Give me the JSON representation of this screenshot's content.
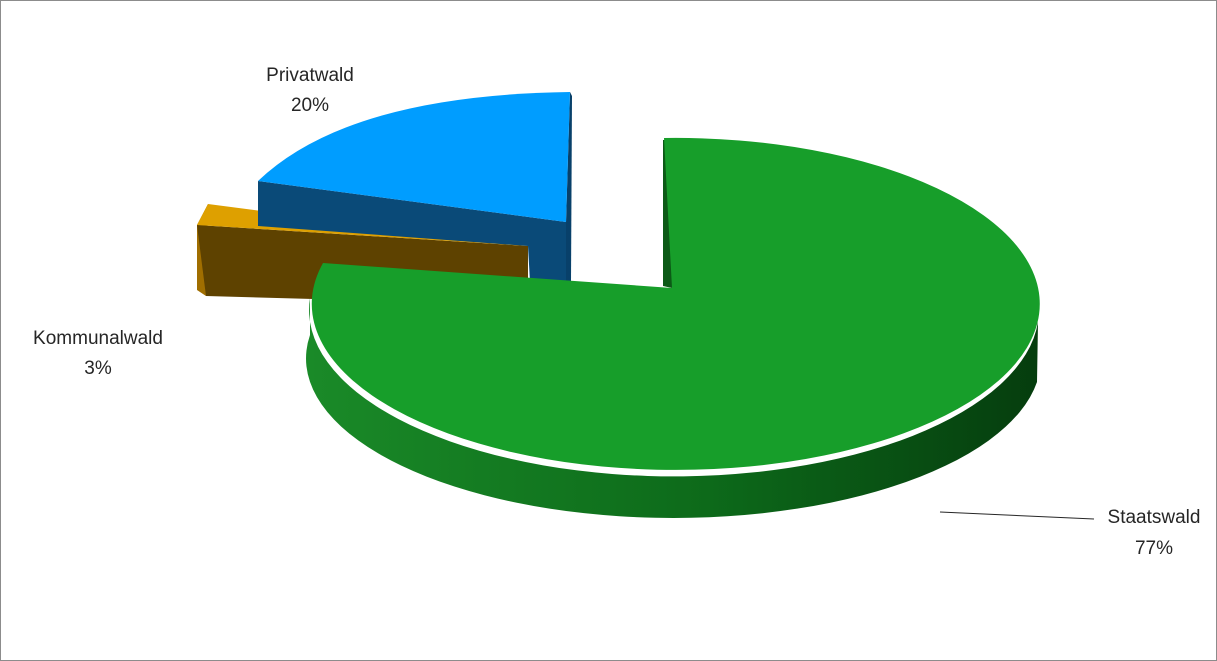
{
  "chart_data": {
    "type": "pie",
    "title": "",
    "legend": "none",
    "style": "3d-exploded",
    "slices": [
      {
        "label": "Staatswald",
        "value": 77,
        "pct_label": "77%",
        "color": "#179E2A"
      },
      {
        "label": "Privatwald",
        "value": 20,
        "pct_label": "20%",
        "color": "#009DFF"
      },
      {
        "label": "Kommunalwald",
        "value": 3,
        "pct_label": "3%",
        "color": "#DEA000"
      }
    ]
  }
}
